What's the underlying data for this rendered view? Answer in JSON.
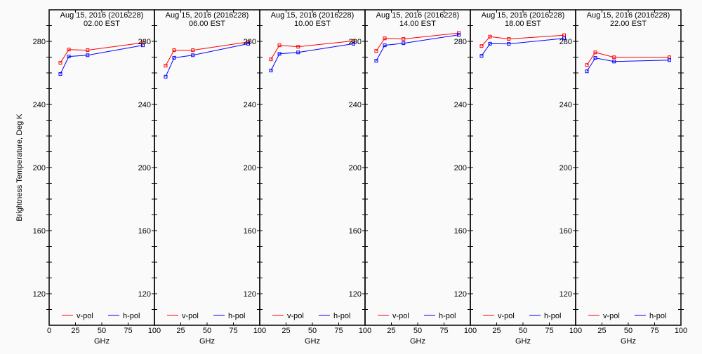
{
  "chart_data": {
    "type": "line",
    "ylabel": "Brightness Temperature, Deg K",
    "xlabel": "GHz",
    "xlim": [
      0,
      100
    ],
    "ylim": [
      100,
      300
    ],
    "x_ticks": [
      0,
      25,
      50,
      75,
      100
    ],
    "y_ticks": [
      120,
      160,
      200,
      240,
      280
    ],
    "grid": false,
    "legend_placement": "bottom",
    "series_colors": {
      "v-pol": "#ff0000",
      "h-pol": "#0000ff"
    },
    "x": [
      10.65,
      18.7,
      36.5,
      89.0
    ],
    "panels": [
      {
        "title": "Aug 15, 2016 (2016228)",
        "subtitle": "02.00 EST",
        "series": [
          {
            "name": "v-pol",
            "values": [
              266.4,
              274.8,
              274.4,
              279.1
            ]
          },
          {
            "name": "h-pol",
            "values": [
              259.3,
              270.4,
              271.2,
              277.5
            ]
          }
        ]
      },
      {
        "title": "Aug 15, 2016 (2016228)",
        "subtitle": "06.00 EST",
        "series": [
          {
            "name": "v-pol",
            "values": [
              264.6,
              274.4,
              274.4,
              279.6
            ]
          },
          {
            "name": "h-pol",
            "values": [
              257.6,
              269.6,
              271.2,
              278.5
            ]
          }
        ]
      },
      {
        "title": "Aug 15, 2016 (2016228)",
        "subtitle": "10.00 EST",
        "series": [
          {
            "name": "v-pol",
            "values": [
              268.6,
              277.5,
              276.6,
              280.3
            ]
          },
          {
            "name": "h-pol",
            "values": [
              261.5,
              272.1,
              273.0,
              278.5
            ]
          }
        ]
      },
      {
        "title": "Aug 15, 2016 (2016228)",
        "subtitle": "14.00 EST",
        "series": [
          {
            "name": "v-pol",
            "values": [
              273.9,
              281.9,
              281.5,
              285.3
            ]
          },
          {
            "name": "h-pol",
            "values": [
              267.7,
              277.5,
              278.8,
              284.1
            ]
          }
        ]
      },
      {
        "title": "Aug 15, 2016 (2016228)",
        "subtitle": "18.00 EST",
        "series": [
          {
            "name": "v-pol",
            "values": [
              277.0,
              283.0,
              281.5,
              283.9
            ]
          },
          {
            "name": "h-pol",
            "values": [
              270.8,
              278.5,
              278.4,
              281.9
            ]
          }
        ]
      },
      {
        "title": "Aug 15, 2016 (2016228)",
        "subtitle": "22.00 EST",
        "series": [
          {
            "name": "v-pol",
            "values": [
              265.0,
              273.0,
              269.9,
              269.9
            ]
          },
          {
            "name": "h-pol",
            "values": [
              261.0,
              269.5,
              267.2,
              268.1
            ]
          }
        ]
      }
    ]
  }
}
